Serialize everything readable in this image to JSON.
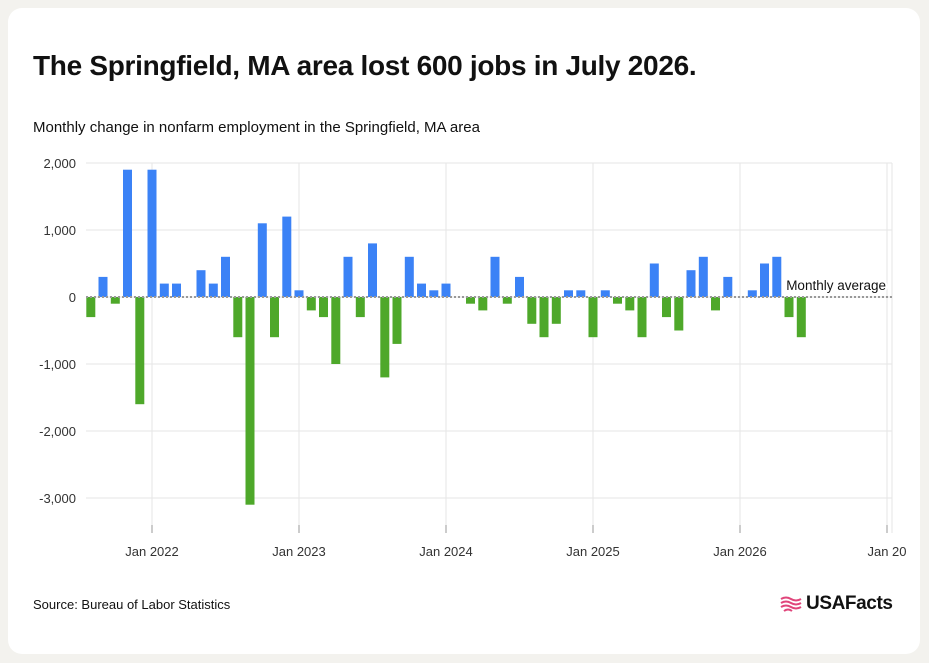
{
  "title": "The Springfield, MA area lost 600 jobs in July 2026.",
  "subtitle": "Monthly change in nonfarm employment in the Springfield, MA area",
  "source": "Source: Bureau of Labor Statistics",
  "logo_text": "USAFacts",
  "colors": {
    "positive": "#3b82f6",
    "negative": "#4ea82a",
    "grid": "#e5e5e5",
    "average_line": "#999999"
  },
  "chart_data": {
    "type": "bar",
    "x_start": "2021-07",
    "x_end": "2027-01",
    "x_ticks": [
      "Jan 2022",
      "Jan 2023",
      "Jan 2024",
      "Jan 2025",
      "Jan 2026",
      "Jan 20"
    ],
    "y_ticks": [
      "2,000",
      "1,000",
      "0",
      "-1,000",
      "-2,000",
      "-3,000"
    ],
    "ylim": [
      -3300,
      2000
    ],
    "average_label": "Monthly average",
    "average_value": 0,
    "grid": true,
    "series": [
      {
        "values": [
          {
            "month": "2021-08",
            "value": -300
          },
          {
            "month": "2021-09",
            "value": 300
          },
          {
            "month": "2021-10",
            "value": -100
          },
          {
            "month": "2021-11",
            "value": 1900
          },
          {
            "month": "2021-12",
            "value": -1600
          },
          {
            "month": "2022-01",
            "value": 1900
          },
          {
            "month": "2022-02",
            "value": 200
          },
          {
            "month": "2022-03",
            "value": 200
          },
          {
            "month": "2022-05",
            "value": 400
          },
          {
            "month": "2022-06",
            "value": 200
          },
          {
            "month": "2022-07",
            "value": 600
          },
          {
            "month": "2022-08",
            "value": -600
          },
          {
            "month": "2022-09",
            "value": -3100
          },
          {
            "month": "2022-10",
            "value": 1100
          },
          {
            "month": "2022-11",
            "value": -600
          },
          {
            "month": "2022-12",
            "value": 1200
          },
          {
            "month": "2023-01",
            "value": 100
          },
          {
            "month": "2023-02",
            "value": -200
          },
          {
            "month": "2023-03",
            "value": -300
          },
          {
            "month": "2023-04",
            "value": -1000
          },
          {
            "month": "2023-05",
            "value": 600
          },
          {
            "month": "2023-06",
            "value": -300
          },
          {
            "month": "2023-07",
            "value": 800
          },
          {
            "month": "2023-08",
            "value": -1200
          },
          {
            "month": "2023-09",
            "value": -700
          },
          {
            "month": "2023-10",
            "value": 600
          },
          {
            "month": "2023-11",
            "value": 200
          },
          {
            "month": "2023-12",
            "value": 100
          },
          {
            "month": "2024-01",
            "value": 200
          },
          {
            "month": "2024-03",
            "value": -100
          },
          {
            "month": "2024-04",
            "value": -200
          },
          {
            "month": "2024-05",
            "value": 600
          },
          {
            "month": "2024-06",
            "value": -100
          },
          {
            "month": "2024-07",
            "value": 300
          },
          {
            "month": "2024-08",
            "value": -400
          },
          {
            "month": "2024-09",
            "value": -600
          },
          {
            "month": "2024-10",
            "value": -400
          },
          {
            "month": "2024-11",
            "value": 100
          },
          {
            "month": "2024-12",
            "value": 100
          },
          {
            "month": "2025-01",
            "value": -600
          },
          {
            "month": "2025-02",
            "value": 100
          },
          {
            "month": "2025-03",
            "value": -100
          },
          {
            "month": "2025-04",
            "value": -200
          },
          {
            "month": "2025-05",
            "value": -600
          },
          {
            "month": "2025-06",
            "value": 500
          },
          {
            "month": "2025-07",
            "value": -300
          },
          {
            "month": "2025-08",
            "value": -500
          },
          {
            "month": "2025-09",
            "value": 400
          },
          {
            "month": "2025-10",
            "value": 600
          },
          {
            "month": "2025-11",
            "value": -200
          },
          {
            "month": "2025-12",
            "value": 300
          },
          {
            "month": "2026-02",
            "value": 100
          },
          {
            "month": "2026-03",
            "value": 500
          },
          {
            "month": "2026-04",
            "value": 600
          },
          {
            "month": "2026-05",
            "value": -300
          },
          {
            "month": "2026-06",
            "value": -600
          }
        ]
      }
    ]
  }
}
